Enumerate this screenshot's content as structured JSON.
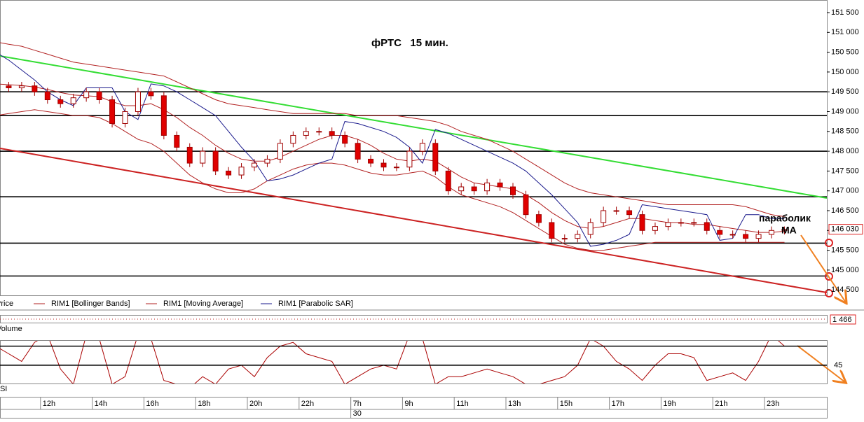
{
  "chart_data": {
    "type": "candlestick",
    "title": "фРТС   15 мин.",
    "annotations": [
      "параболик",
      "MA"
    ],
    "categories": [
      null,
      null,
      null,
      null,
      "12h",
      null,
      null,
      null,
      "14h",
      null,
      null,
      null,
      "16h",
      null,
      null,
      null,
      "18h",
      null,
      null,
      null,
      "20h",
      null,
      null,
      null,
      "22h",
      null,
      null,
      null,
      "7h",
      null,
      null,
      null,
      "9h",
      null,
      null,
      null,
      "11h",
      null,
      null,
      null,
      "13h",
      null,
      null,
      null,
      "15h",
      null,
      null,
      null,
      "17h",
      null,
      null,
      null,
      "19h",
      null,
      null,
      null,
      "21h",
      null,
      null,
      null,
      "23h",
      null
    ],
    "days": [
      null,
      null,
      null,
      null,
      null,
      null,
      null,
      null,
      null,
      null,
      null,
      null,
      null,
      null,
      null,
      null,
      null,
      null,
      null,
      null,
      null,
      null,
      null,
      null,
      null,
      null,
      null,
      null,
      "30",
      null,
      null,
      null,
      null,
      null,
      null,
      null,
      null,
      null,
      null,
      null,
      null,
      null,
      null,
      null,
      null,
      null,
      null,
      null,
      null,
      null,
      null,
      null,
      null,
      null,
      null,
      null,
      null,
      null,
      null,
      null,
      null,
      null
    ],
    "candles": {
      "name": "Price",
      "up_color": "#ffffff",
      "down_color": "#e00000",
      "edge_color": "#a00000",
      "open": [
        149550,
        149650,
        149600,
        149650,
        149500,
        149300,
        149200,
        149350,
        149500,
        149300,
        148700,
        149000,
        149500,
        149400,
        148400,
        148100,
        147700,
        148000,
        147500,
        147400,
        147600,
        147700,
        147800,
        148200,
        148400,
        148500,
        148500,
        148400,
        148200,
        147800,
        147700,
        147600,
        147600,
        148000,
        148200,
        147500,
        147000,
        147100,
        147000,
        147200,
        147100,
        146900,
        146400,
        146200,
        145800,
        145800,
        145900,
        146200,
        146500,
        146500,
        146400,
        146000,
        146100,
        146200,
        146200,
        146200,
        146000,
        145900,
        145900,
        145800,
        145900,
        146000
      ],
      "high": [
        149750,
        149750,
        149750,
        149750,
        149600,
        149400,
        149450,
        149600,
        149600,
        149400,
        149100,
        149600,
        149600,
        149500,
        148500,
        148200,
        148100,
        148100,
        147600,
        147700,
        147800,
        147900,
        148300,
        148500,
        148600,
        148600,
        148600,
        148500,
        148300,
        147900,
        147800,
        147700,
        148100,
        148300,
        148300,
        147600,
        147200,
        147200,
        147300,
        147300,
        147200,
        147000,
        146500,
        146300,
        145900,
        146000,
        146300,
        146600,
        146600,
        146600,
        146500,
        146200,
        146300,
        146300,
        146300,
        146300,
        146100,
        146000,
        146000,
        146000,
        146100,
        146100
      ],
      "low": [
        149450,
        149500,
        149500,
        149400,
        149200,
        149100,
        149100,
        149250,
        149200,
        148600,
        148600,
        148900,
        149300,
        148300,
        148000,
        147600,
        147600,
        147400,
        147300,
        147300,
        147500,
        147600,
        147700,
        148100,
        148300,
        148400,
        148300,
        148100,
        147700,
        147600,
        147500,
        147500,
        147500,
        147900,
        147400,
        146900,
        146900,
        146900,
        146900,
        147000,
        146800,
        146300,
        146100,
        145700,
        145700,
        145700,
        145800,
        146100,
        146400,
        146300,
        145900,
        145900,
        146000,
        146100,
        146100,
        145900,
        145800,
        145800,
        145700,
        145700,
        145800,
        145900
      ],
      "close": [
        149650,
        149600,
        149650,
        149500,
        149300,
        149200,
        149350,
        149500,
        149300,
        148700,
        149000,
        149500,
        149400,
        148400,
        148100,
        147700,
        148000,
        147500,
        147400,
        147600,
        147700,
        147800,
        148200,
        148400,
        148500,
        148500,
        148400,
        148200,
        147800,
        147700,
        147600,
        147600,
        148000,
        148200,
        147500,
        147000,
        147100,
        147000,
        147200,
        147100,
        146900,
        146400,
        146200,
        145800,
        145800,
        145900,
        146200,
        146500,
        146500,
        146400,
        146000,
        146100,
        146200,
        146200,
        146200,
        146000,
        145900,
        145900,
        145800,
        145900,
        146000,
        146030
      ],
      "last_label": "146 030"
    },
    "series": [
      {
        "name": "RIM1 [Bollinger Bands]",
        "color": "#b22222",
        "upper": [
          150760,
          150700,
          150650,
          150550,
          150450,
          150350,
          150250,
          150200,
          150150,
          150100,
          150050,
          150000,
          149950,
          149900,
          149750,
          149600,
          149450,
          149300,
          149200,
          149150,
          149100,
          149050,
          149000,
          148950,
          148950,
          148950,
          148950,
          148950,
          148900,
          148900,
          148900,
          148900,
          148850,
          148800,
          148750,
          148650,
          148500,
          148400,
          148300,
          148150,
          148000,
          147800,
          147600,
          147400,
          147200,
          147050,
          146950,
          146900,
          146850,
          146800,
          146750,
          146700,
          146650,
          146650,
          146650,
          146650,
          146650,
          146650,
          146600,
          146500,
          146400,
          146350
        ],
        "lower": [
          148900,
          148950,
          149000,
          149050,
          149000,
          148950,
          148900,
          148900,
          148850,
          148700,
          148500,
          148300,
          148200,
          148000,
          147700,
          147400,
          147200,
          147050,
          146950,
          146950,
          147050,
          147250,
          147400,
          147550,
          147650,
          147700,
          147700,
          147650,
          147550,
          147450,
          147400,
          147400,
          147450,
          147500,
          147350,
          147100,
          146900,
          146800,
          146700,
          146600,
          146450,
          146250,
          146050,
          145850,
          145650,
          145550,
          145500,
          145500,
          145550,
          145600,
          145650,
          145700,
          145700,
          145700,
          145700,
          145700,
          145700,
          145700,
          145700,
          145700,
          145700,
          145700
        ]
      },
      {
        "name": "RIM1 [Moving Average]",
        "color": "#b22222",
        "values": [
          149700,
          149680,
          149660,
          149620,
          149560,
          149480,
          149420,
          149400,
          149380,
          149250,
          149150,
          149150,
          149200,
          149050,
          148850,
          148600,
          148400,
          148150,
          147950,
          147800,
          147750,
          147750,
          147850,
          148000,
          148150,
          148300,
          148400,
          148400,
          148300,
          148150,
          147950,
          147800,
          147750,
          147800,
          147750,
          147550,
          147350,
          147200,
          147150,
          147100,
          147050,
          146900,
          146700,
          146450,
          146250,
          146100,
          146050,
          146100,
          146200,
          146300,
          146300,
          146250,
          146200,
          146200,
          146150,
          146150,
          146100,
          146050,
          146000,
          145950,
          145950,
          145980
        ]
      },
      {
        "name": "RIM1 [Parabolic SAR]",
        "color": "#1a1a8c",
        "values": [
          150500,
          150300,
          150050,
          149800,
          149500,
          149300,
          149150,
          149600,
          149600,
          149600,
          149000,
          148800,
          149700,
          149650,
          149500,
          149300,
          149100,
          148900,
          148500,
          148100,
          147750,
          147250,
          147300,
          147400,
          147550,
          147700,
          147800,
          148750,
          148700,
          148600,
          148500,
          148350,
          148100,
          147700,
          148550,
          148450,
          148300,
          148150,
          148000,
          147850,
          147700,
          147500,
          147200,
          146900,
          146550,
          146200,
          145600,
          145650,
          145750,
          145900,
          146650,
          146600,
          146550,
          146500,
          146450,
          146400,
          145750,
          145800,
          146400,
          146400,
          146300,
          146300
        ]
      }
    ],
    "hlines": [
      149500,
      148900,
      148000,
      146850,
      145680,
      144850
    ],
    "trendlines": [
      {
        "color": "#33dd33",
        "y": [
          150405,
          146818
        ]
      },
      {
        "color": "#cc2222",
        "y": [
          148072,
          144433
        ]
      }
    ],
    "ylim": [
      144362,
      151818
    ],
    "yticks": [
      {
        "value": 151500,
        "label": "151 500"
      },
      {
        "value": 151000,
        "label": "151 000"
      },
      {
        "value": 150500,
        "label": "150 500"
      },
      {
        "value": 150000,
        "label": "150 000"
      },
      {
        "value": 149500,
        "label": "149 500"
      },
      {
        "value": 149000,
        "label": "149 000"
      },
      {
        "value": 148500,
        "label": "148 500"
      },
      {
        "value": 148000,
        "label": "148 000"
      },
      {
        "value": 147500,
        "label": "147 500"
      },
      {
        "value": 147000,
        "label": "147 000"
      },
      {
        "value": 146500,
        "label": "146 500"
      },
      {
        "value": 146000,
        "label": "146 000"
      },
      {
        "value": 145500,
        "label": "145 500"
      },
      {
        "value": 145000,
        "label": "145 000"
      },
      {
        "value": 144500,
        "label": "144 500"
      }
    ],
    "volume": {
      "name": "Volume",
      "last": {
        "value": 1466,
        "label": "1 466"
      }
    },
    "rsi": {
      "name": "RSI",
      "color": "#aa0000",
      "ylim": [
        21,
        77
      ],
      "yticks": [
        45
      ],
      "levels": [
        70,
        45
      ],
      "values": [
        70,
        60,
        50,
        75,
        85,
        40,
        20,
        85,
        80,
        20,
        30,
        85,
        80,
        25,
        20,
        15,
        30,
        20,
        40,
        45,
        30,
        55,
        70,
        75,
        60,
        55,
        50,
        20,
        30,
        40,
        45,
        40,
        85,
        80,
        20,
        30,
        30,
        35,
        40,
        35,
        30,
        20,
        20,
        25,
        30,
        45,
        80,
        70,
        50,
        40,
        25,
        45,
        60,
        60,
        55,
        25,
        30,
        35,
        25,
        50,
        85,
        70
      ]
    }
  }
}
